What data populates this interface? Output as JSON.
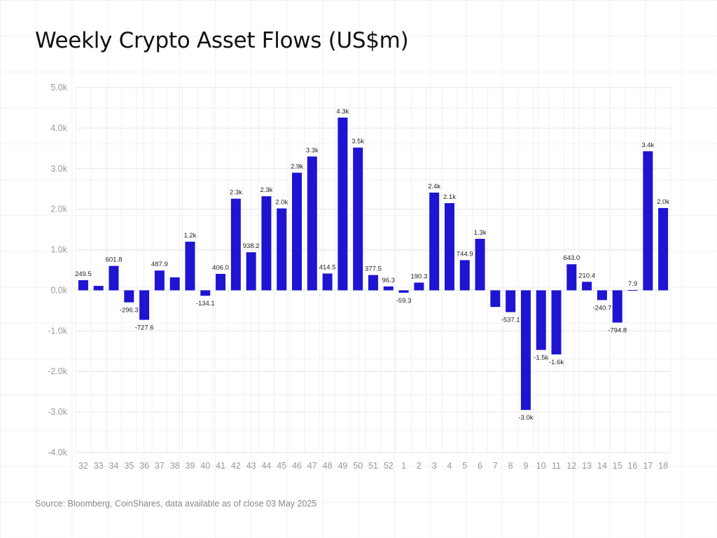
{
  "title": "Weekly Crypto Asset Flows (US$m)",
  "source": "Source: Bloomberg, CoinShares, data available as of close 03 May 2025",
  "colors": {
    "bar": "#1e14d2",
    "grid": "#e6e6e6",
    "tick": "#9a9a9a",
    "label": "#222222"
  },
  "chart_data": {
    "type": "bar",
    "ylim": [
      -4000,
      5000
    ],
    "yticks": [
      5000,
      4000,
      3000,
      2000,
      1000,
      0,
      -1000,
      -2000,
      -3000,
      -4000
    ],
    "ytick_labels": [
      "5.0k",
      "4.0k",
      "3.0k",
      "2.0k",
      "1.0k",
      "0.0k",
      "-1.0k",
      "-2.0k",
      "-3.0k",
      "-4.0k"
    ],
    "grid": true,
    "categories": [
      "32",
      "33",
      "34",
      "35",
      "36",
      "37",
      "38",
      "39",
      "40",
      "41",
      "42",
      "43",
      "44",
      "45",
      "46",
      "47",
      "48",
      "49",
      "50",
      "51",
      "52",
      "1",
      "2",
      "3",
      "4",
      "5",
      "6",
      "7",
      "8",
      "9",
      "10",
      "11",
      "12",
      "13",
      "14",
      "15",
      "16",
      "17",
      "18"
    ],
    "values": [
      249.5,
      110,
      601.8,
      -296.3,
      -727.6,
      487.9,
      320,
      1200,
      -134.1,
      406.0,
      2260,
      938.2,
      2320,
      2020,
      2900,
      3300,
      414.5,
      4260,
      3520,
      377.5,
      96.3,
      -59.3,
      190.3,
      2410,
      2150,
      744.9,
      1270,
      -410,
      -537.1,
      -2950,
      -1470,
      -1580,
      643.0,
      210.4,
      -240.7,
      -794.8,
      7.9,
      3430,
      2030
    ],
    "data_labels": [
      "249.5",
      "",
      "601.8",
      "-296.3",
      "-727.6",
      "487.9",
      "",
      "1.2k",
      "-134.1",
      "406.0",
      "2.3k",
      "938.2",
      "2.3k",
      "2.0k",
      "2.9k",
      "3.3k",
      "414.5",
      "4.3k",
      "3.5k",
      "377.5",
      "96.3",
      "-59.3",
      "190.3",
      "2.4k",
      "2.1k",
      "744.9",
      "1.3k",
      "",
      "-537.1",
      "-3.0k",
      "-1.5k",
      "-1.6k",
      "643.0",
      "210.4",
      "-240.7",
      "-794.8",
      "7.9",
      "3.4k",
      "2.0k"
    ]
  }
}
